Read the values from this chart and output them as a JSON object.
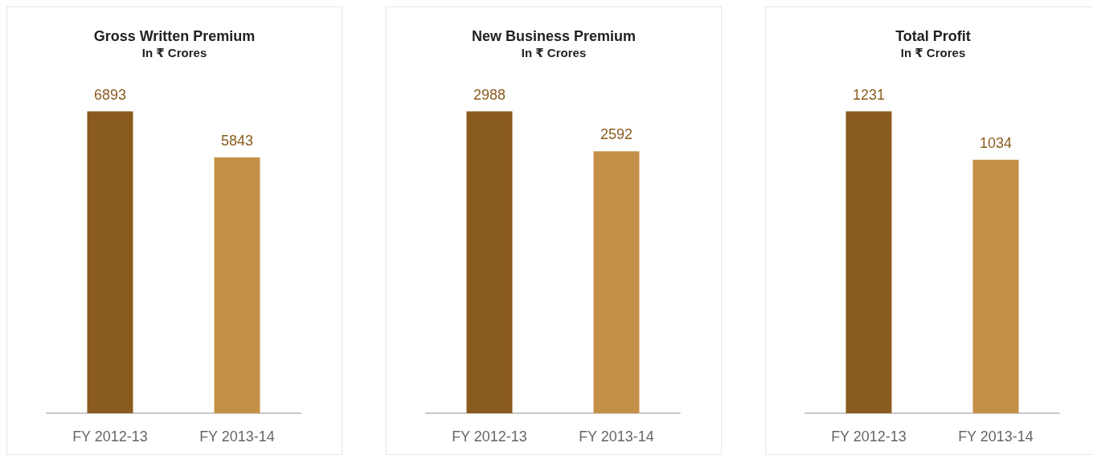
{
  "chart_data": [
    {
      "type": "bar",
      "title": "Gross Written Premium",
      "subtitle": "In ₹ Crores",
      "categories": [
        "FY 2012-13",
        "FY 2013-14"
      ],
      "values": [
        6893,
        5843
      ],
      "colors": [
        "#8a5b1e",
        "#c48f47"
      ],
      "data_labels": true,
      "grid": false,
      "tick_labels": "x"
    },
    {
      "type": "bar",
      "title": "New Business Premium",
      "subtitle": "In ₹ Crores",
      "categories": [
        "FY 2012-13",
        "FY 2013-14"
      ],
      "values": [
        2988,
        2592
      ],
      "colors": [
        "#8a5b1e",
        "#c48f47"
      ],
      "data_labels": true,
      "grid": false,
      "tick_labels": "x"
    },
    {
      "type": "bar",
      "title": "Total Profit",
      "subtitle": "In ₹ Crores",
      "categories": [
        "FY 2012-13",
        "FY 2013-14"
      ],
      "values": [
        1231,
        1034
      ],
      "colors": [
        "#8a5b1e",
        "#c48f47"
      ],
      "data_labels": true,
      "grid": false,
      "tick_labels": "x"
    }
  ]
}
